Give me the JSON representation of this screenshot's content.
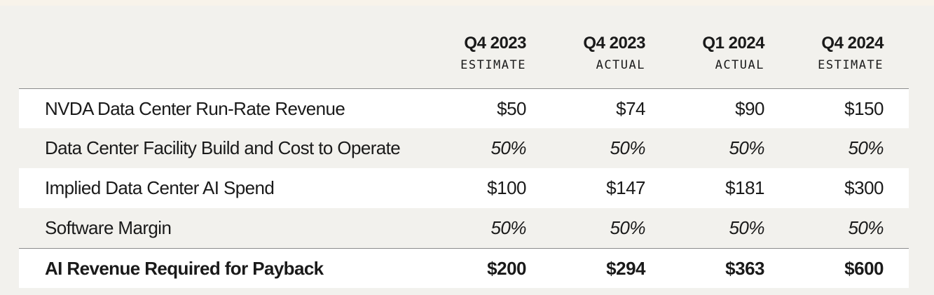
{
  "chart_data": {
    "type": "table",
    "columns": [
      {
        "period": "Q4 2023",
        "kind": "ESTIMATE"
      },
      {
        "period": "Q4 2023",
        "kind": "ACTUAL"
      },
      {
        "period": "Q1 2024",
        "kind": "ACTUAL"
      },
      {
        "period": "Q4 2024",
        "kind": "ESTIMATE"
      }
    ],
    "rows": [
      {
        "label": "NVDA Data Center Run-Rate Revenue",
        "values": [
          "$50",
          "$74",
          "$90",
          "$150"
        ],
        "style": "normal"
      },
      {
        "label": "Data Center Facility Build and Cost to Operate",
        "values": [
          "50%",
          "50%",
          "50%",
          "50%"
        ],
        "style": "italic"
      },
      {
        "label": "Implied Data Center AI Spend",
        "values": [
          "$100",
          "$147",
          "$181",
          "$300"
        ],
        "style": "normal"
      },
      {
        "label": "Software Margin",
        "values": [
          "50%",
          "50%",
          "50%",
          "50%"
        ],
        "style": "italic"
      },
      {
        "label": "AI Revenue Required for Payback",
        "values": [
          "$200",
          "$294",
          "$363",
          "$600"
        ],
        "style": "bold"
      }
    ]
  },
  "colors": {
    "background": "#f2f1ed",
    "row_alt": "#ffffff",
    "rule": "#8c8c8c",
    "text": "#1a1a1a"
  }
}
